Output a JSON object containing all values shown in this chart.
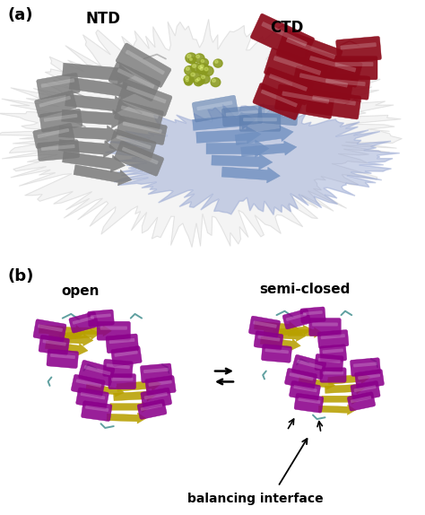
{
  "fig_width": 4.74,
  "fig_height": 5.74,
  "dpi": 100,
  "bg_color": "#ffffff",
  "panel_a": {
    "label": "(a)",
    "label_fontsize": 13,
    "label_fontweight": "bold",
    "ntd_text": "NTD",
    "ntd_fontsize": 12,
    "ntd_fontweight": "bold",
    "ctd_text": "CTD",
    "ctd_fontsize": 12,
    "ctd_fontweight": "bold"
  },
  "panel_b": {
    "label": "(b)",
    "label_fontsize": 13,
    "label_fontweight": "bold",
    "open_text": "open",
    "open_fontsize": 11,
    "open_fontweight": "bold",
    "semiclosed_text": "semi-closed",
    "semiclosed_fontsize": 11,
    "semiclosed_fontweight": "bold",
    "balancing_text": "balancing interface",
    "balancing_fontsize": 10,
    "balancing_fontweight": "bold"
  },
  "colors": {
    "helix_gray": "#7a7a7a",
    "helix_dark_red": "#8b0a1a",
    "helix_purple": "#8b008b",
    "sheet_gray": "#aaaaaa",
    "sheet_blue": "#7090c0",
    "sheet_yellow": "#b8a000",
    "loop_teal": "#2a8080",
    "ligand": "#8a9a20",
    "surface_gray": "#c8c8c8",
    "surface_blue": "#9aadd0",
    "bg": "#ffffff"
  }
}
